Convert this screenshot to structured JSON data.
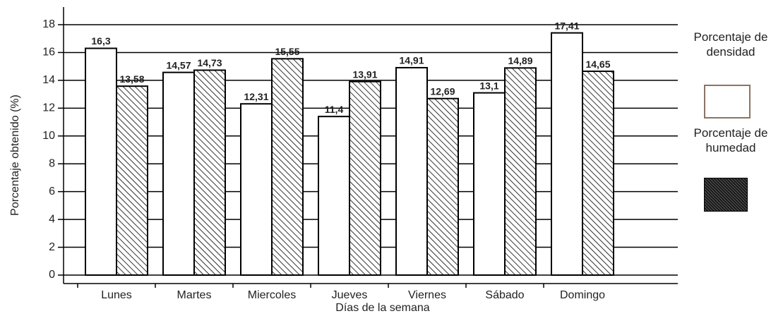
{
  "chart_data": {
    "type": "bar",
    "xlabel": "Días de la semana",
    "ylabel": "Porcentaje obtenido (%)",
    "categories": [
      "Lunes",
      "Martes",
      "Miercoles",
      "Jueves",
      "Viernes",
      "Sábado",
      "Domingo"
    ],
    "series": [
      {
        "name": "Porcentaje de densidad",
        "color": "#ffffff",
        "values": [
          16.3,
          14.57,
          12.31,
          11.4,
          14.91,
          13.1,
          17.41
        ],
        "value_labels": [
          "16,3",
          "14,57",
          "12,31",
          "11,4",
          "14,91",
          "13,1",
          "17,41"
        ]
      },
      {
        "name": "Porcentaje de humedad",
        "color": "#000000",
        "values": [
          13.58,
          14.73,
          15.55,
          13.91,
          12.69,
          14.89,
          14.65
        ],
        "value_labels": [
          "13,58",
          "14,73",
          "15,55",
          "13,91",
          "12,69",
          "14,89",
          "14,65"
        ]
      }
    ],
    "ylim": [
      0,
      18
    ],
    "yticks": [
      0,
      2,
      4,
      6,
      8,
      10,
      12,
      14,
      16,
      18
    ],
    "grid": true
  }
}
